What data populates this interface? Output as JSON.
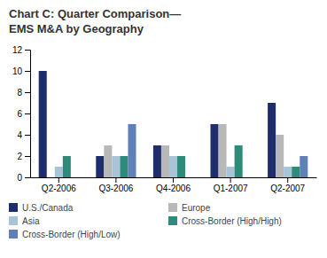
{
  "chart_data": {
    "type": "bar",
    "title": "Chart C: Quarter Comparison—\nEMS M&A by Geography",
    "categories": [
      "Q2-2006",
      "Q3-2006",
      "Q4-2006",
      "Q1-2007",
      "Q2-2007"
    ],
    "series": [
      {
        "name": "U.S./Canada",
        "color": "#1e2d6b",
        "values": [
          10,
          2,
          3,
          5,
          7
        ]
      },
      {
        "name": "Europe",
        "color": "#b8b8b8",
        "values": [
          0,
          3,
          3,
          5,
          4
        ]
      },
      {
        "name": "Asia",
        "color": "#a8c4d8",
        "values": [
          1,
          2,
          2,
          1,
          1
        ]
      },
      {
        "name": "Cross-Border (High/High)",
        "color": "#2e8b7a",
        "values": [
          2,
          2,
          2,
          3,
          1
        ]
      },
      {
        "name": "Cross-Border (High/Low)",
        "color": "#6080b8",
        "values": [
          0,
          5,
          0,
          0,
          2
        ]
      }
    ],
    "ylim": [
      0,
      12
    ],
    "yticks": [
      0,
      2,
      4,
      6,
      8,
      10,
      12
    ],
    "grid": false,
    "legend": "bottom"
  }
}
